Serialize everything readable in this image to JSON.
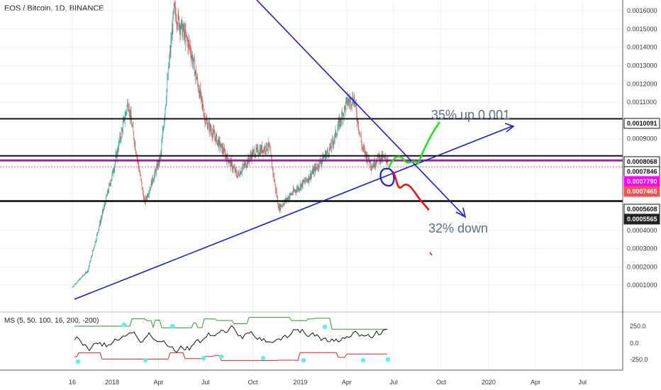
{
  "header": {
    "title": "EOS / Bitcoin, 1D, BINANCE"
  },
  "indicator": {
    "title": "MS (5, 50, 100, 16, 200, -200)",
    "ticks": [
      "250.0",
      "0.0",
      "-250.0"
    ]
  },
  "annotations": {
    "up": "35% up 0.001",
    "down": "32% down"
  },
  "colors": {
    "up_candle": "#26a69a",
    "down_candle": "#ef5350",
    "trendline": "#1a1ad6",
    "green_path": "#22e022",
    "red_path": "#ee1111",
    "magenta": "#ff00ff",
    "indicator_upper": "#2e9a2e",
    "indicator_lower": "#e02020",
    "indicator_marker": "#5df2e6"
  },
  "chart_data": {
    "type": "line",
    "title": "EOS / Bitcoin, 1D, BINANCE",
    "x": [
      "2017-10-16",
      "2017-11-15",
      "2018-01-01",
      "2018-02-01",
      "2018-03-05",
      "2018-04-05",
      "2018-05-01",
      "2018-06-01",
      "2018-07-01",
      "2018-08-01",
      "2018-09-01",
      "2018-10-01",
      "2018-11-01",
      "2018-11-20",
      "2018-12-15",
      "2019-01-15",
      "2019-03-01",
      "2019-04-01",
      "2019-04-15",
      "2019-05-01",
      "2019-05-20",
      "2019-06-01",
      "2019-06-20"
    ],
    "series": [
      {
        "values": [
          9e-05,
          0.00018,
          0.0007,
          0.0011,
          0.00055,
          0.0008,
          0.0016,
          0.0014,
          0.001,
          0.00085,
          0.0007,
          0.00082,
          0.00086,
          0.00052,
          0.0006,
          0.00068,
          0.00085,
          0.0011,
          0.00112,
          0.00085,
          0.00075,
          0.0008,
          0.0007846
        ]
      }
    ],
    "x_ticks": [
      "16",
      "2018",
      "Apr",
      "Jul",
      "Oct",
      "2019",
      "Apr",
      "Jul",
      "Oct",
      "2020",
      "Apr",
      "Jul"
    ],
    "y_ticks": [
      "0.0016000",
      "0.0015000",
      "0.0014000",
      "0.0013000",
      "0.0012000",
      "0.0011000",
      "0.0009000",
      "0.0006000",
      "0.0004000",
      "0.0003000",
      "0.0002000",
      "0.0001000"
    ],
    "horizontal_levels": [
      {
        "value": 0.0010091,
        "label": "0.0010091"
      },
      {
        "value": 0.0008068,
        "label": "0.0008068"
      },
      {
        "value": 0.0007846,
        "label": "0.0007846"
      },
      {
        "value": 0.000779,
        "label": "0.0007790"
      },
      {
        "value": 0.0007465,
        "label": "0.0007465"
      },
      {
        "value": 0.0005608,
        "label": "0.0005608"
      },
      {
        "value": 0.0005565,
        "label": "0.0005565"
      }
    ],
    "ylim": [
      5e-05,
      0.00165
    ],
    "y_scale": "linear",
    "grid": true
  }
}
